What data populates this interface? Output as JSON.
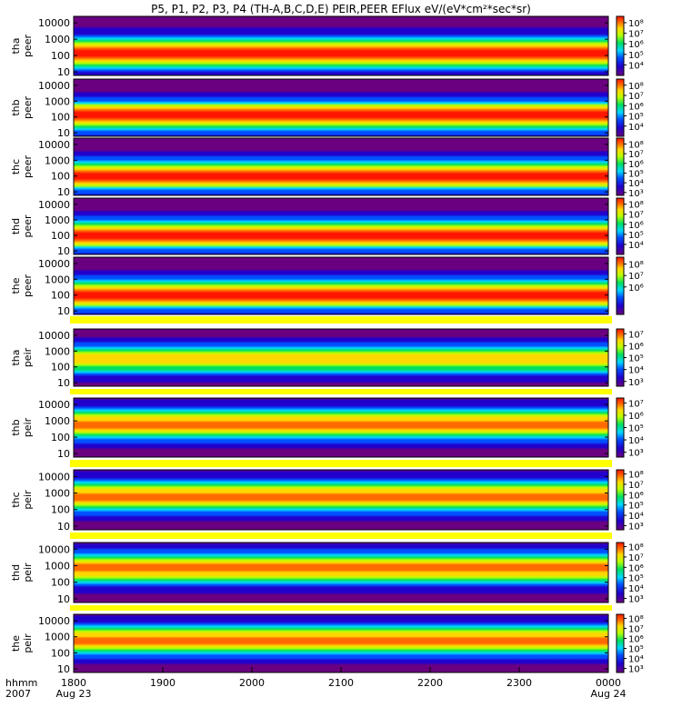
{
  "title": "P5, P1, P2, P3, P4 (TH-A,B,C,D,E) PEIR,PEER EFlux eV/(eV*cm²*sec*sr)",
  "chart_data": {
    "type": "heatmap",
    "title": "P5, P1, P2, P3, P4 (TH-A,B,C,D,E) PEIR,PEER EFlux eV/(eV*cm²*sec*sr)",
    "xlabel": "hhmm",
    "x_year": "2007",
    "x_ticks": [
      {
        "label": "1800",
        "date": "Aug 23",
        "hours": 0
      },
      {
        "label": "1900",
        "date": "",
        "hours": 1
      },
      {
        "label": "2000",
        "date": "",
        "hours": 2
      },
      {
        "label": "2100",
        "date": "",
        "hours": 3
      },
      {
        "label": "2200",
        "date": "",
        "hours": 4
      },
      {
        "label": "2300",
        "date": "",
        "hours": 5
      },
      {
        "label": "0000",
        "date": "Aug 24",
        "hours": 6
      }
    ],
    "x_range_hours": [
      0,
      6
    ],
    "y_scale": "log",
    "y_range_eV": [
      6,
      25000
    ],
    "y_ticks": [
      "10000",
      "1000",
      "100",
      "10"
    ],
    "colormap": "rainbow (purple-blue-cyan-green-yellow-red)",
    "panels": [
      {
        "probe": "tha",
        "product": "peer",
        "cbar_range_exp": [
          3,
          8.6
        ],
        "cbar_ticks": [
          "10⁸",
          "10⁷",
          "10⁶",
          "10⁵",
          "10⁴"
        ],
        "peak_energy_eV": 150,
        "intensity": 1.0
      },
      {
        "probe": "thb",
        "product": "peer",
        "cbar_range_exp": [
          3,
          8.6
        ],
        "cbar_ticks": [
          "10⁸",
          "10⁷",
          "10⁶",
          "10⁵",
          "10⁴"
        ],
        "peak_energy_eV": 120,
        "intensity": 1.0
      },
      {
        "probe": "thc",
        "product": "peer",
        "cbar_range_exp": [
          2.7,
          8.6
        ],
        "cbar_ticks": [
          "10⁸",
          "10⁷",
          "10⁶",
          "10⁵",
          "10⁴",
          "10³"
        ],
        "peak_energy_eV": 110,
        "intensity": 1.0
      },
      {
        "probe": "thd",
        "product": "peer",
        "cbar_range_exp": [
          3,
          8.6
        ],
        "cbar_ticks": [
          "10⁸",
          "10⁷",
          "10⁶",
          "10⁵",
          "10⁴"
        ],
        "peak_energy_eV": 110,
        "intensity": 1.0
      },
      {
        "probe": "the",
        "product": "peer",
        "cbar_range_exp": [
          3.6,
          8.6
        ],
        "cbar_ticks": [
          "10⁸",
          "10⁷",
          "10⁶"
        ],
        "peak_energy_eV": 110,
        "intensity": 1.0
      },
      {
        "probe": "tha",
        "product": "peir",
        "cbar_range_exp": [
          2.6,
          7.4
        ],
        "cbar_ticks": [
          "10⁷",
          "10⁶",
          "10⁵",
          "10⁴",
          "10³"
        ],
        "peak_energy_eV": 300,
        "intensity": 0.8
      },
      {
        "probe": "thb",
        "product": "peir",
        "cbar_range_exp": [
          2.6,
          7.4
        ],
        "cbar_ticks": [
          "10⁷",
          "10⁶",
          "10⁵",
          "10⁴",
          "10³"
        ],
        "peak_energy_eV": 600,
        "intensity": 0.9
      },
      {
        "probe": "thc",
        "product": "peir",
        "cbar_range_exp": [
          2.6,
          8.4
        ],
        "cbar_ticks": [
          "10⁸",
          "10⁷",
          "10⁶",
          "10⁵",
          "10⁴",
          "10³"
        ],
        "peak_energy_eV": 600,
        "intensity": 0.9
      },
      {
        "probe": "thd",
        "product": "peir",
        "cbar_range_exp": [
          2.6,
          8.4
        ],
        "cbar_ticks": [
          "10⁸",
          "10⁷",
          "10⁶",
          "10⁵",
          "10⁴",
          "10³"
        ],
        "peak_energy_eV": 700,
        "intensity": 0.9
      },
      {
        "probe": "the",
        "product": "peir",
        "cbar_range_exp": [
          2.6,
          8.4
        ],
        "cbar_ticks": [
          "10⁸",
          "10⁷",
          "10⁶",
          "10⁵",
          "10⁴",
          "10³"
        ],
        "peak_energy_eV": 600,
        "intensity": 0.9
      }
    ]
  }
}
